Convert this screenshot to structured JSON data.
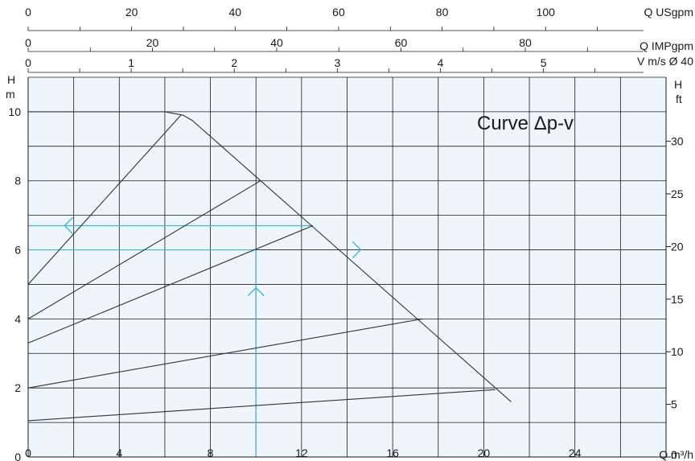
{
  "chart_data": {
    "type": "line",
    "title": "Curve Δp-v",
    "x": {
      "label": "Q m³/h",
      "range": [
        0,
        28
      ],
      "ticks": [
        0,
        4,
        8,
        12,
        16,
        20,
        24
      ],
      "grid_step": 2
    },
    "y_left": {
      "label_line1": "H",
      "label_line2": "m",
      "range": [
        0,
        11
      ],
      "ticks": [
        0,
        2,
        4,
        6,
        8,
        10
      ],
      "grid_step": 1
    },
    "y_right": {
      "label_line1": "H",
      "label_line2": "ft",
      "factor": 3.28084,
      "ticks": [
        0,
        5,
        10,
        15,
        20,
        25,
        30
      ]
    },
    "top_axes": [
      {
        "label": "Q USgpm",
        "factor": 4.40287,
        "ticks": [
          0,
          20,
          40,
          60,
          80,
          100
        ],
        "minor_step": 10
      },
      {
        "label": "Q IMPgpm",
        "factor": 3.66615,
        "ticks": [
          0,
          20,
          40,
          60,
          80
        ],
        "minor_step": 10
      },
      {
        "label": "V m/s Ø 40",
        "factor": 0.221049,
        "ticks": [
          0,
          1,
          2,
          3,
          4,
          5
        ],
        "minor_step": 0.5
      }
    ],
    "grid": true,
    "series": [
      {
        "role": "max-curve",
        "points": [
          [
            0,
            10
          ],
          [
            6,
            10
          ],
          [
            6.8,
            9.9
          ],
          [
            7.2,
            9.75
          ],
          [
            21.2,
            1.6
          ]
        ]
      },
      {
        "role": "dp-v",
        "points": [
          [
            0,
            5
          ],
          [
            6.7,
            9.9
          ]
        ]
      },
      {
        "role": "dp-v",
        "points": [
          [
            0,
            4
          ],
          [
            10.2,
            8
          ]
        ]
      },
      {
        "role": "dp-v",
        "points": [
          [
            0,
            3.3
          ],
          [
            12.5,
            6.7
          ]
        ]
      },
      {
        "role": "dp-v",
        "points": [
          [
            0,
            2
          ],
          [
            17.3,
            4
          ]
        ]
      },
      {
        "role": "dp-v",
        "points": [
          [
            0,
            1.05
          ],
          [
            20.5,
            1.95
          ]
        ]
      }
    ],
    "annotations": {
      "color": "#3fb6d8",
      "horizontal_lines": [
        {
          "y": 6.7,
          "x": [
            0,
            12.5
          ]
        },
        {
          "y": 6,
          "x": [
            0,
            10
          ]
        }
      ],
      "vertical_lines": [
        {
          "x": 10,
          "y": [
            0,
            6
          ]
        }
      ],
      "arrows": [
        {
          "direction": "left",
          "x": 1.6,
          "y": 6.7
        },
        {
          "direction": "right",
          "x": 14.6,
          "y": 6
        },
        {
          "direction": "up",
          "x": 10,
          "y": 4.9
        }
      ]
    },
    "colors": {
      "plot_background": "#eef6fb",
      "grid": "#1a1a1a",
      "curve": "#333333",
      "accent": "#3fb6d8"
    }
  }
}
